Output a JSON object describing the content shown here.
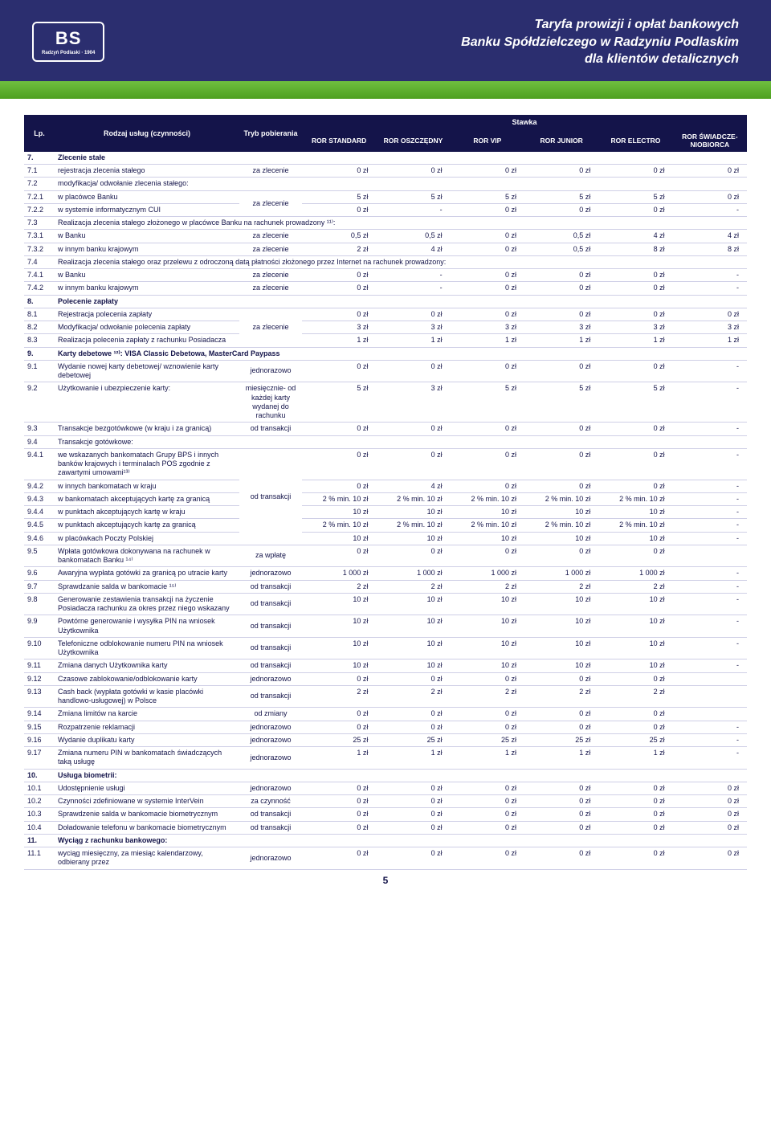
{
  "header": {
    "logo_main": "BS",
    "logo_sub": "Radzyń Podlaski · 1904",
    "title_line1": "Taryfa prowizji i opłat bankowych",
    "title_line2": "Banku Spółdzielczego w Radzyniu Podlaskim",
    "title_line3": "dla klientów detalicznych"
  },
  "table": {
    "head": {
      "lp": "Lp.",
      "rodzaj": "Rodzaj usług (czynności)",
      "tryb": "Tryb pobierania",
      "stawka": "Stawka",
      "cols": [
        "ROR STANDARD",
        "ROR OSZCZĘDNY",
        "ROR VIP",
        "ROR JUNIOR",
        "ROR ELECTRO",
        "ROR ŚWIADCZE-NIOBIORCA"
      ]
    },
    "rows": [
      {
        "type": "sec",
        "lp": "7.",
        "desc": "Zlecenie stałe"
      },
      {
        "lp": "7.1",
        "desc": "rejestracja zlecenia stałego",
        "tryb": "za zlecenie",
        "v": [
          "0 zł",
          "0 zł",
          "0 zł",
          "0 zł",
          "0 zł",
          "0 zł"
        ]
      },
      {
        "lp": "7.2",
        "desc": "modyfikacja/ odwołanie zlecenia stałego:"
      },
      {
        "lp": "7.2.1",
        "desc": "w placówce Banku",
        "tryb": "za zlecenie",
        "trybRowspan": 2,
        "v": [
          "5 zł",
          "5 zł",
          "5 zł",
          "5 zł",
          "5 zł",
          "0 zł"
        ]
      },
      {
        "lp": "7.2.2",
        "desc": "w systemie informatycznym CUI",
        "trybSkip": true,
        "v": [
          "0 zł",
          "-",
          "0 zł",
          "0 zł",
          "0 zł",
          "-"
        ]
      },
      {
        "lp": "7.3",
        "desc": "Realizacja zlecenia stałego złożonego w placówce Banku na rachunek prowadzony ¹¹⁾:",
        "span": true
      },
      {
        "lp": "7.3.1",
        "desc": "w Banku",
        "tryb": "za zlecenie",
        "v": [
          "0,5 zł",
          "0,5 zł",
          "0 zł",
          "0,5 zł",
          "4 zł",
          "4 zł"
        ]
      },
      {
        "lp": "7.3.2",
        "desc": "w innym banku krajowym",
        "tryb": "za zlecenie",
        "v": [
          "2 zł",
          "4 zł",
          "0 zł",
          "0,5 zł",
          "8 zł",
          "8 zł"
        ]
      },
      {
        "lp": "7.4",
        "desc": "Realizacja zlecenia stałego oraz przelewu z odroczoną datą płatności złożonego przez Internet na rachunek prowadzony:",
        "span": true
      },
      {
        "lp": "7.4.1",
        "desc": "w Banku",
        "tryb": "za zlecenie",
        "v": [
          "0 zł",
          "-",
          "0 zł",
          "0 zł",
          "0 zł",
          "-"
        ]
      },
      {
        "lp": "7.4.2",
        "desc": "w innym banku krajowym",
        "tryb": "za zlecenie",
        "v": [
          "0 zł",
          "-",
          "0 zł",
          "0 zł",
          "0 zł",
          "-"
        ]
      },
      {
        "type": "sec",
        "lp": "8.",
        "desc": "Polecenie zapłaty"
      },
      {
        "lp": "8.1",
        "desc": "Rejestracja polecenia zapłaty",
        "tryb": "za zlecenie",
        "trybRowspan": 3,
        "v": [
          "0 zł",
          "0 zł",
          "0 zł",
          "0 zł",
          "0 zł",
          "0 zł"
        ]
      },
      {
        "lp": "8.2",
        "desc": "Modyfikacja/ odwołanie polecenia zapłaty",
        "trybSkip": true,
        "v": [
          "3 zł",
          "3 zł",
          "3 zł",
          "3 zł",
          "3 zł",
          "3 zł"
        ]
      },
      {
        "lp": "8.3",
        "desc": "Realizacja polecenia zapłaty z rachunku Posiadacza",
        "trybSkip": true,
        "v": [
          "1 zł",
          "1 zł",
          "1 zł",
          "1 zł",
          "1 zł",
          "1 zł"
        ]
      },
      {
        "type": "sec",
        "lp": "9.",
        "desc": "Karty debetowe ¹²⁾: VISA Classic Debetowa, MasterCard Paypass",
        "span": true
      },
      {
        "lp": "9.1",
        "desc": "Wydanie nowej karty debetowej/ wznowienie karty debetowej",
        "tryb": "jednorazowo",
        "v": [
          "0 zł",
          "0 zł",
          "0 zł",
          "0 zł",
          "0 zł",
          "-"
        ]
      },
      {
        "lp": "9.2",
        "desc": "Użytkowanie i ubezpieczenie karty:",
        "tryb": "miesięcznie- od każdej karty wydanej do rachunku",
        "v": [
          "5 zł",
          "3 zł",
          "5 zł",
          "5 zł",
          "5 zł",
          "-"
        ]
      },
      {
        "lp": "9.3",
        "desc": "Transakcje bezgotówkowe (w kraju i za granicą)",
        "tryb": "od transakcji",
        "v": [
          "0 zł",
          "0 zł",
          "0 zł",
          "0 zł",
          "0 zł",
          "-"
        ]
      },
      {
        "lp": "9.4",
        "desc": "Transakcje gotówkowe:"
      },
      {
        "lp": "9.4.1",
        "desc": "we wskazanych bankomatach Grupy BPS i innych banków krajowych i terminalach POS zgodnie z zawartymi umowami¹³⁾",
        "tryb": "od transakcji",
        "trybRowspan": 6,
        "v": [
          "0 zł",
          "0 zł",
          "0 zł",
          "0 zł",
          "0 zł",
          "-"
        ]
      },
      {
        "lp": "9.4.2",
        "desc": "w innych bankomatach w kraju",
        "trybSkip": true,
        "v": [
          "0 zł",
          "4 zł",
          "0 zł",
          "0 zł",
          "0 zł",
          "-"
        ]
      },
      {
        "lp": "9.4.3",
        "desc": "w bankomatach akceptujących kartę za granicą",
        "trybSkip": true,
        "v": [
          "2 % min. 10 zł",
          "2 % min. 10 zł",
          "2 % min. 10 zł",
          "2 % min. 10 zł",
          "2 % min. 10 zł",
          "-"
        ]
      },
      {
        "lp": "9.4.4",
        "desc": "w punktach akceptujących kartę w kraju",
        "trybSkip": true,
        "v": [
          "10 zł",
          "10 zł",
          "10 zł",
          "10 zł",
          "10 zł",
          "-"
        ]
      },
      {
        "lp": "9.4.5",
        "desc": "w punktach akceptujących kartę za granicą",
        "trybSkip": true,
        "v": [
          "2 % min. 10 zł",
          "2 % min. 10 zł",
          "2 % min. 10 zł",
          "2 % min. 10 zł",
          "2 % min. 10 zł",
          "-"
        ]
      },
      {
        "lp": "9.4.6",
        "desc": "w placówkach Poczty Polskiej",
        "trybSkip": true,
        "v": [
          "10 zł",
          "10 zł",
          "10 zł",
          "10 zł",
          "10 zł",
          "-"
        ]
      },
      {
        "lp": "9.5",
        "desc": "Wpłata gotówkowa dokonywana na rachunek w bankomatach Banku ¹⁴⁾",
        "tryb": "za wpłatę",
        "v": [
          "0 zł",
          "0 zł",
          "0 zł",
          "0 zł",
          "0 zł",
          ""
        ]
      },
      {
        "lp": "9.6",
        "desc": "Awaryjna wypłata gotówki za granicą po utracie karty",
        "tryb": "jednorazowo",
        "v": [
          "1 000 zł",
          "1 000 zł",
          "1 000 zł",
          "1 000 zł",
          "1 000 zł",
          "-"
        ]
      },
      {
        "lp": "9.7",
        "desc": "Sprawdzanie salda w bankomacie ¹⁵⁾",
        "tryb": "od transakcji",
        "v": [
          "2 zł",
          "2 zł",
          "2 zł",
          "2 zł",
          "2 zł",
          "-"
        ]
      },
      {
        "lp": "9.8",
        "desc": "Generowanie zestawienia transakcji na życzenie Posiadacza rachunku za okres przez niego wskazany",
        "tryb": "od transakcji",
        "v": [
          "10 zł",
          "10 zł",
          "10 zł",
          "10 zł",
          "10 zł",
          "-"
        ]
      },
      {
        "lp": "9.9",
        "desc": "Powtórne generowanie i wysyłka PIN na wniosek Użytkownika",
        "tryb": "od transakcji",
        "v": [
          "10 zł",
          "10 zł",
          "10 zł",
          "10 zł",
          "10 zł",
          "-"
        ]
      },
      {
        "lp": "9.10",
        "desc": "Telefoniczne odblokowanie numeru PIN na wniosek Użytkownika",
        "tryb": "od transakcji",
        "v": [
          "10 zł",
          "10 zł",
          "10 zł",
          "10 zł",
          "10 zł",
          "-"
        ]
      },
      {
        "lp": "9.11",
        "desc": "Zmiana danych Użytkownika karty",
        "tryb": "od transakcji",
        "v": [
          "10 zł",
          "10 zł",
          "10 zł",
          "10 zł",
          "10 zł",
          "-"
        ]
      },
      {
        "lp": "9.12",
        "desc": "Czasowe zablokowanie/odblokowanie karty",
        "tryb": "jednorazowo",
        "v": [
          "0 zł",
          "0 zł",
          "0 zł",
          "0 zł",
          "0 zł",
          ""
        ]
      },
      {
        "lp": "9.13",
        "desc": "Cash back (wypłata gotówki w kasie placówki handlowo-usługowej) w Polsce",
        "tryb": "od transakcji",
        "v": [
          "2 zł",
          "2 zł",
          "2 zł",
          "2 zł",
          "2 zł",
          ""
        ]
      },
      {
        "lp": "9.14",
        "desc": "Zmiana limitów na karcie",
        "tryb": "od zmiany",
        "v": [
          "0 zł",
          "0 zł",
          "0 zł",
          "0 zł",
          "0 zł",
          ""
        ]
      },
      {
        "lp": "9.15",
        "desc": "Rozpatrzenie reklamacji",
        "tryb": "jednorazowo",
        "v": [
          "0 zł",
          "0 zł",
          "0 zł",
          "0 zł",
          "0 zł",
          "-"
        ]
      },
      {
        "lp": "9.16",
        "desc": "Wydanie duplikatu karty",
        "tryb": "jednorazowo",
        "v": [
          "25 zł",
          "25 zł",
          "25 zł",
          "25 zł",
          "25 zł",
          "-"
        ]
      },
      {
        "lp": "9.17",
        "desc": "Zmiana numeru PIN w bankomatach świadczących taką usługę",
        "tryb": "jednorazowo",
        "v": [
          "1 zł",
          "1 zł",
          "1 zł",
          "1 zł",
          "1 zł",
          "-"
        ]
      },
      {
        "type": "sec",
        "lp": "10.",
        "desc": "Usługa biometrii:"
      },
      {
        "lp": "10.1",
        "desc": "Udostępnienie usługi",
        "tryb": "jednorazowo",
        "v": [
          "0 zł",
          "0 zł",
          "0 zł",
          "0 zł",
          "0 zł",
          "0 zł"
        ]
      },
      {
        "lp": "10.2",
        "desc": "Czynności zdefiniowane w systemie InterVein",
        "tryb": "za czynność",
        "v": [
          "0 zł",
          "0 zł",
          "0 zł",
          "0 zł",
          "0 zł",
          "0 zł"
        ]
      },
      {
        "lp": "10.3",
        "desc": "Sprawdzenie salda w bankomacie biometrycznym",
        "tryb": "od transakcji",
        "v": [
          "0 zł",
          "0 zł",
          "0 zł",
          "0 zł",
          "0 zł",
          "0 zł"
        ]
      },
      {
        "lp": "10.4",
        "desc": "Doładowanie telefonu w bankomacie biometrycznym",
        "tryb": "od transakcji",
        "v": [
          "0 zł",
          "0 zł",
          "0 zł",
          "0 zł",
          "0 zł",
          "0 zł"
        ]
      },
      {
        "type": "sec",
        "lp": "11.",
        "desc": "Wyciąg z rachunku bankowego:"
      },
      {
        "lp": "11.1",
        "desc": "wyciąg miesięczny, za miesiąc kalendarzowy, odbierany przez",
        "tryb": "jednorazowo",
        "v": [
          "0 zł",
          "0 zł",
          "0 zł",
          "0 zł",
          "0 zł",
          "0 zł"
        ]
      }
    ]
  },
  "page_number": "5"
}
